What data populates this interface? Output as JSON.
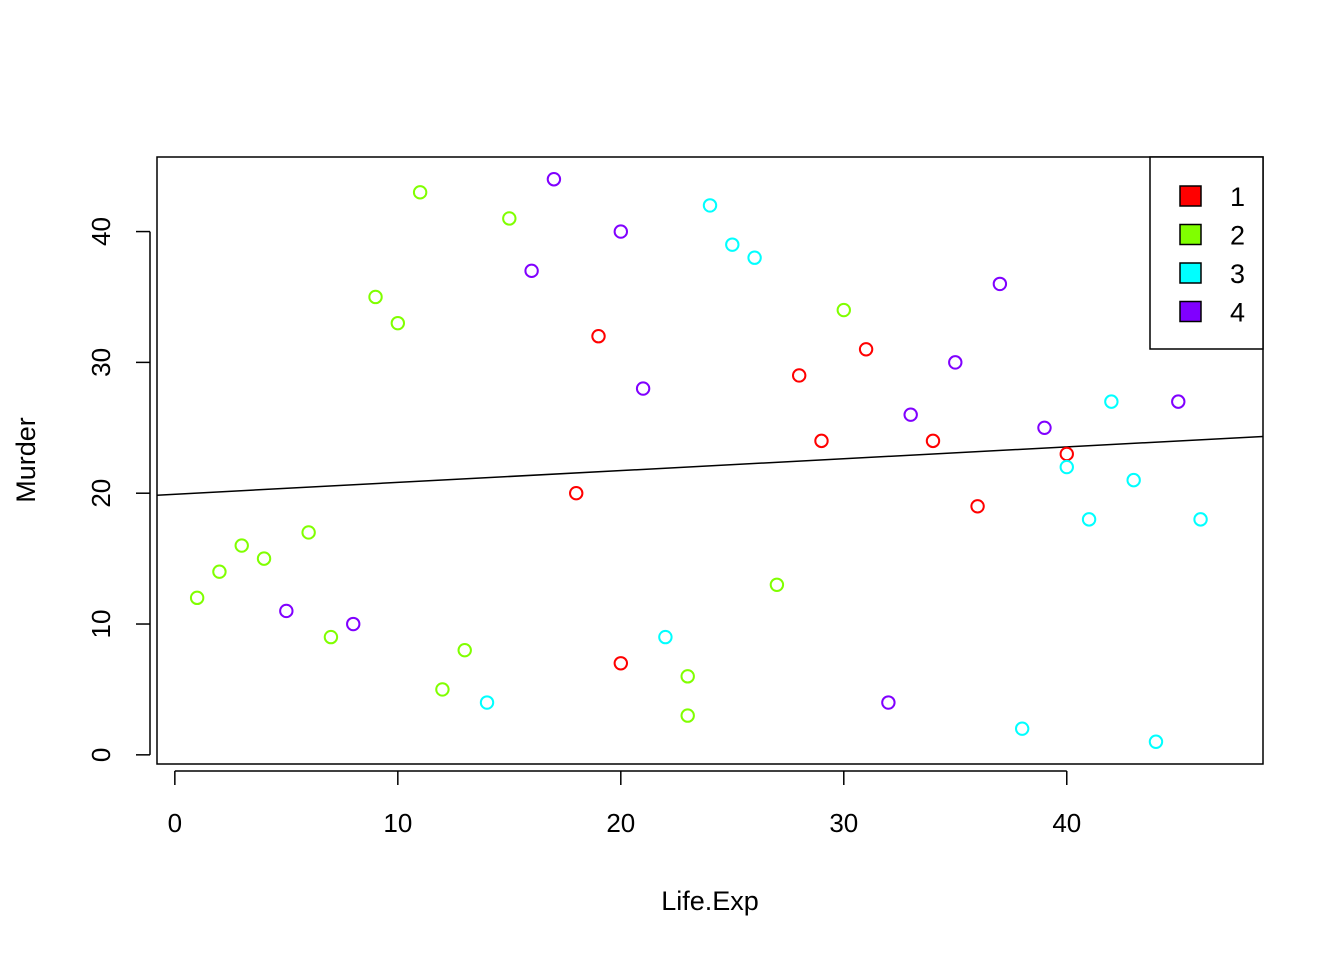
{
  "chart_data": {
    "type": "scatter",
    "title": "",
    "xlabel": "Life.Exp",
    "ylabel": "Murder",
    "xlim": [
      -0.8,
      48.8
    ],
    "ylim": [
      -0.7,
      45.7
    ],
    "xticks": [
      "0",
      "10",
      "20",
      "30",
      "40"
    ],
    "yticks": [
      "0",
      "10",
      "20",
      "30",
      "40"
    ],
    "grid": false,
    "legend_position": "top-right",
    "fit_line": {
      "intercept": 19.92,
      "slope": 0.0905
    },
    "series": [
      {
        "name": "1",
        "color": "#FF0000",
        "points": [
          [
            18,
            20
          ],
          [
            19,
            32
          ],
          [
            20,
            7
          ],
          [
            28,
            29
          ],
          [
            29,
            24
          ],
          [
            31,
            31
          ],
          [
            34,
            24
          ],
          [
            36,
            19
          ],
          [
            40,
            23
          ]
        ]
      },
      {
        "name": "2",
        "color": "#80FF00",
        "points": [
          [
            1,
            12
          ],
          [
            2,
            14
          ],
          [
            3,
            16
          ],
          [
            4,
            15
          ],
          [
            6,
            17
          ],
          [
            7,
            9
          ],
          [
            9,
            35
          ],
          [
            10,
            33
          ],
          [
            11,
            43
          ],
          [
            12,
            5
          ],
          [
            13,
            8
          ],
          [
            15,
            41
          ],
          [
            23,
            6
          ],
          [
            23,
            3
          ],
          [
            27,
            13
          ],
          [
            30,
            34
          ]
        ]
      },
      {
        "name": "3",
        "color": "#00FFFF",
        "points": [
          [
            14,
            4
          ],
          [
            22,
            9
          ],
          [
            24,
            42
          ],
          [
            25,
            39
          ],
          [
            26,
            38
          ],
          [
            38,
            2
          ],
          [
            40,
            22
          ],
          [
            41,
            18
          ],
          [
            42,
            27
          ],
          [
            43,
            21
          ],
          [
            44,
            1
          ],
          [
            46,
            18
          ]
        ]
      },
      {
        "name": "4",
        "color": "#8000FF",
        "points": [
          [
            5,
            11
          ],
          [
            8,
            10
          ],
          [
            16,
            37
          ],
          [
            17,
            44
          ],
          [
            20,
            40
          ],
          [
            21,
            28
          ],
          [
            32,
            4
          ],
          [
            33,
            26
          ],
          [
            35,
            30
          ],
          [
            37,
            36
          ],
          [
            39,
            25
          ],
          [
            45,
            27
          ]
        ]
      }
    ]
  }
}
